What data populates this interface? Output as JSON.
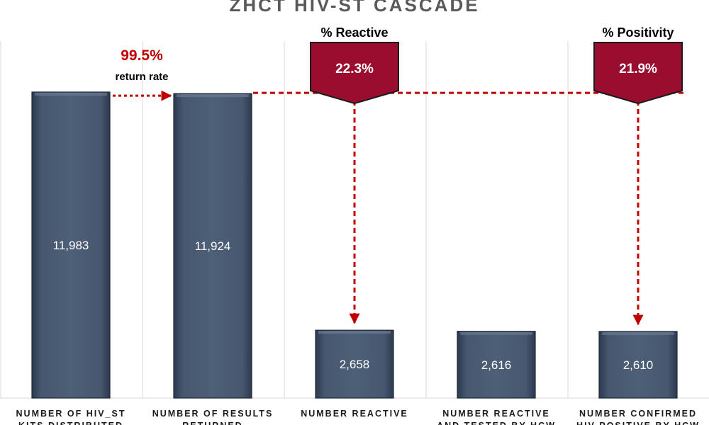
{
  "chart_data": {
    "type": "bar",
    "title": "ZHCT HIV-ST CASCADE",
    "categories": [
      [
        "NUMBER OF HIV_ST",
        "KITS DISTRIBUTED"
      ],
      [
        "NUMBER OF RESULTS",
        "RETURNED"
      ],
      [
        "NUMBER REACTIVE"
      ],
      [
        "NUMBER REACTIVE",
        "AND TESTED BY HCW"
      ],
      [
        "NUMBER CONFIRMED",
        "HIV POSITIVE BY HCW"
      ]
    ],
    "values": [
      11983,
      11924,
      2658,
      2616,
      2610
    ],
    "value_labels": [
      "11,983",
      "11,924",
      "2,658",
      "2,616",
      "2,610"
    ],
    "ylim": [
      0,
      14200
    ],
    "grid": "vertical separators",
    "annotations": [
      {
        "type": "return-rate",
        "value": "99.5%",
        "label": "return rate",
        "from": 0,
        "to": 1
      },
      {
        "type": "callout",
        "title": "% Reactive",
        "value": "22.3%",
        "from": 1,
        "to": 2
      },
      {
        "type": "callout",
        "title": "% Positivity",
        "value": "21.9%",
        "from": 1,
        "to": 4
      }
    ],
    "colors": {
      "bar": "#44546a",
      "callout": "#9b0d2e",
      "arrow": "#c00000"
    }
  }
}
